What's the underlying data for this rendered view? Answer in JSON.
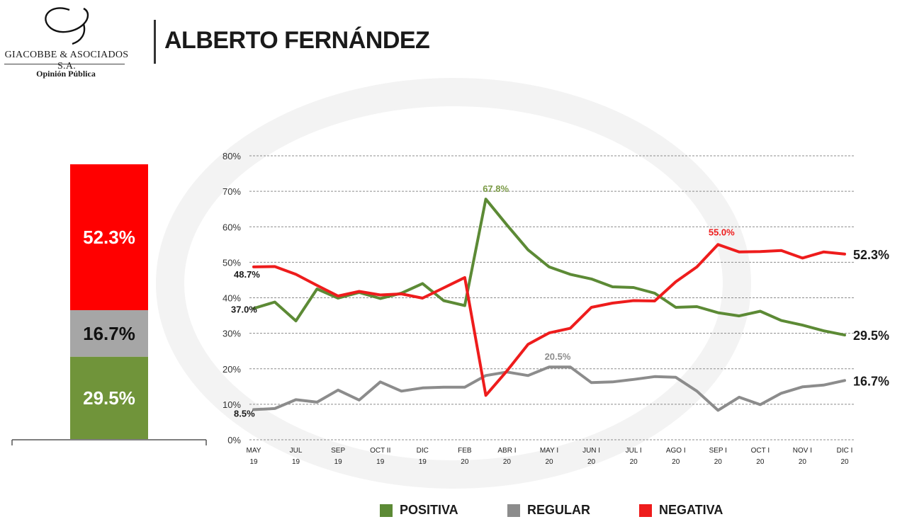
{
  "header": {
    "brand": "GIACOBBE & ASOCIADOS S.A.",
    "brand_sub": "Opinión Pública",
    "title": "ALBERTO FERNÁNDEZ"
  },
  "stack_bar": {
    "segments": [
      {
        "label": "52.3%",
        "value": 52.3,
        "color": "#ff0000"
      },
      {
        "label": "16.7%",
        "value": 16.7,
        "color": "#a6a6a6"
      },
      {
        "label": "29.5%",
        "value": 29.5,
        "color": "#70943a"
      }
    ]
  },
  "chart_data": {
    "type": "line",
    "title": "",
    "xlabel": "",
    "ylabel": "",
    "ylim": [
      0,
      80
    ],
    "yticks": [
      "0%",
      "10%",
      "20%",
      "30%",
      "40%",
      "50%",
      "60%",
      "70%",
      "80%"
    ],
    "grid": true,
    "legend_position": "bottom",
    "x_tick_labels": [
      {
        "top": "MAY",
        "bottom": "19"
      },
      {
        "top": "JUL",
        "bottom": "19"
      },
      {
        "top": "SEP",
        "bottom": "19"
      },
      {
        "top": "OCT II",
        "bottom": "19"
      },
      {
        "top": "DIC",
        "bottom": "19"
      },
      {
        "top": "FEB",
        "bottom": "20"
      },
      {
        "top": "ABR I",
        "bottom": "20"
      },
      {
        "top": "MAY I",
        "bottom": "20"
      },
      {
        "top": "JUN I",
        "bottom": "20"
      },
      {
        "top": "JUL I",
        "bottom": "20"
      },
      {
        "top": "AGO I",
        "bottom": "20"
      },
      {
        "top": "SEP I",
        "bottom": "20"
      },
      {
        "top": "OCT I",
        "bottom": "20"
      },
      {
        "top": "NOV I",
        "bottom": "20"
      },
      {
        "top": "DIC I",
        "bottom": "20"
      }
    ],
    "series": [
      {
        "name": "POSITIVA",
        "color": "#5c8a35",
        "values": [
          37.0,
          38.8,
          33.5,
          42.5,
          39.9,
          41.5,
          39.8,
          41.3,
          44.0,
          39.2,
          37.8,
          67.8,
          60.5,
          53.5,
          48.7,
          46.6,
          45.3,
          43.1,
          42.9,
          41.3,
          37.3,
          37.5,
          35.8,
          34.9,
          36.2,
          33.6,
          32.3,
          30.7,
          29.5
        ],
        "labels": [
          {
            "index": 0,
            "text": "37.0%"
          },
          {
            "index": 11,
            "text": "67.8%"
          },
          {
            "index": 28,
            "text": "29.5%"
          }
        ]
      },
      {
        "name": "REGULAR",
        "color": "#8c8c8c",
        "values": [
          8.5,
          8.8,
          11.3,
          10.6,
          14.0,
          11.2,
          16.3,
          13.7,
          14.6,
          14.8,
          14.8,
          18.1,
          19.1,
          18.1,
          20.5,
          20.5,
          16.1,
          16.3,
          17.0,
          17.8,
          17.6,
          13.7,
          8.3,
          12.0,
          9.9,
          13.1,
          14.9,
          15.4,
          16.7
        ],
        "labels": [
          {
            "index": 0,
            "text": "8.5%"
          },
          {
            "index": 14,
            "text": "20.5%"
          },
          {
            "index": 28,
            "text": "16.7%"
          }
        ]
      },
      {
        "name": "NEGATIVA",
        "color": "#ee1c1c",
        "values": [
          48.7,
          48.8,
          46.6,
          43.5,
          40.5,
          41.8,
          40.8,
          41.1,
          39.9,
          42.8,
          45.7,
          12.5,
          19.4,
          26.9,
          30.1,
          31.4,
          37.3,
          38.5,
          39.2,
          39.1,
          44.5,
          48.7,
          55.0,
          52.9,
          53.0,
          53.3,
          51.2,
          52.9,
          52.3
        ],
        "labels": [
          {
            "index": 0,
            "text": "48.7%"
          },
          {
            "index": 22,
            "text": "55.0%"
          },
          {
            "index": 28,
            "text": "52.3%"
          }
        ]
      }
    ]
  },
  "legend": [
    {
      "label": "POSITIVA",
      "color": "#5c8a35"
    },
    {
      "label": "REGULAR",
      "color": "#8c8c8c"
    },
    {
      "label": "NEGATIVA",
      "color": "#ee1c1c"
    }
  ]
}
